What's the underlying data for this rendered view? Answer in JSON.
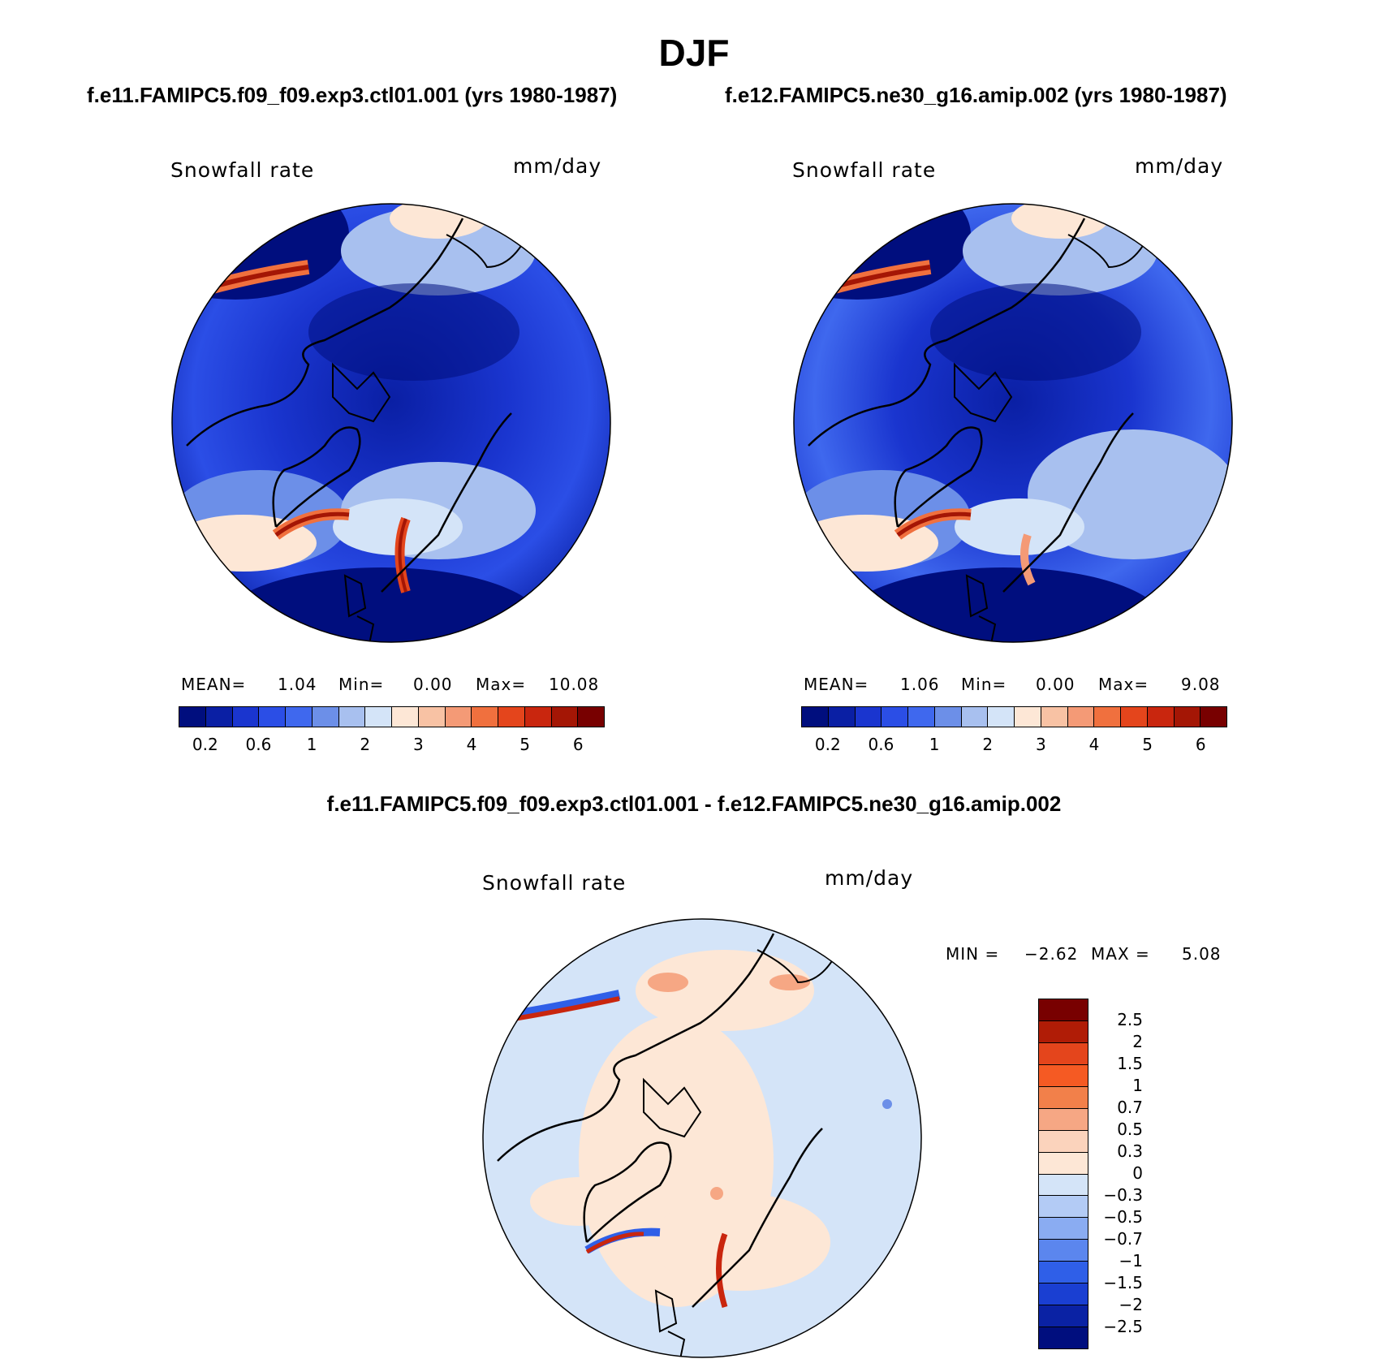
{
  "title": "DJF",
  "case_titles": {
    "left": "f.e11.FAMIPC5.f09_f09.exp3.ctl01.001 (yrs 1980-1987)",
    "right": "f.e12.FAMIPC5.ne30_g16.amip.002 (yrs 1980-1987)"
  },
  "diff_title": "f.e11.FAMIPC5.f09_f09.exp3.ctl01.001 - f.e12.FAMIPC5.ne30_g16.amip.002",
  "panels": [
    {
      "variable": "Snowfall rate",
      "units": "mm/day",
      "stats": {
        "mean_label": "MEAN=",
        "mean": "1.04",
        "min_label": "Min=",
        "min": "0.00",
        "max_label": "Max=",
        "max": "10.08"
      }
    },
    {
      "variable": "Snowfall rate",
      "units": "mm/day",
      "stats": {
        "mean_label": "MEAN=",
        "mean": "1.06",
        "min_label": "Min=",
        "min": "0.00",
        "max_label": "Max=",
        "max": "9.08"
      }
    }
  ],
  "diff_panel": {
    "variable": "Snowfall rate",
    "units": "mm/day",
    "stats": {
      "min_label": "MIN =",
      "min": "−2.62",
      "max_label": "MAX =",
      "max": "5.08"
    }
  },
  "colorbar_abs": {
    "colors": [
      "#000e7e",
      "#0a1fa4",
      "#1a35cf",
      "#2b4ee6",
      "#3f68ee",
      "#6c8fe8",
      "#a8c0ef",
      "#d4e4f8",
      "#fde7d6",
      "#f8c2a4",
      "#f49a76",
      "#f0703e",
      "#e4451c",
      "#c9260e",
      "#a41605",
      "#780000"
    ],
    "labels": [
      "0.2",
      "0.6",
      "1",
      "2",
      "3",
      "4",
      "5",
      "6"
    ]
  },
  "colorbar_diff": {
    "colors": [
      "#780000",
      "#b01c06",
      "#e4451c",
      "#f55a23",
      "#f2804a",
      "#f6a784",
      "#fbd3bc",
      "#fde7d6",
      "#d4e4f8",
      "#b3cbf5",
      "#8aacf2",
      "#5b86ee",
      "#2f5fe8",
      "#1a3fd2",
      "#0a22a4",
      "#000e7e"
    ],
    "labels": [
      "2.5",
      "2",
      "1.5",
      "1",
      "0.7",
      "0.5",
      "0.3",
      "0",
      "−0.3",
      "−0.5",
      "−0.7",
      "−1",
      "−1.5",
      "−2",
      "−2.5"
    ]
  }
}
